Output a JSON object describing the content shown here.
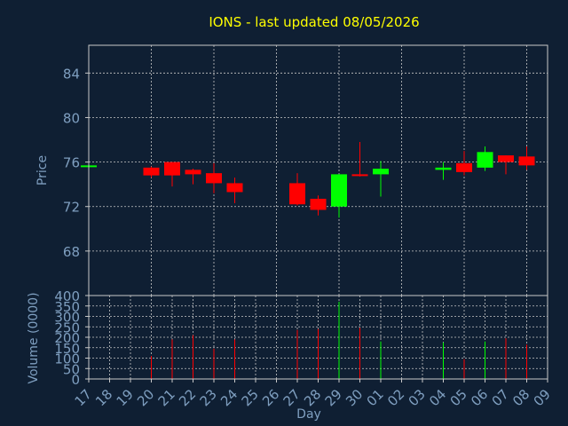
{
  "chart_data": {
    "type": "candlestick",
    "title": "IONS - last updated 08/05/2026",
    "xlabel": "Day",
    "price_panel": {
      "ylabel": "Price",
      "ylim": [
        64,
        86.5
      ],
      "yticks": [
        68,
        72,
        76,
        80,
        84
      ]
    },
    "volume_panel": {
      "ylabel": "Volume (0000)",
      "ylim": [
        0,
        400
      ],
      "yticks": [
        0,
        50,
        100,
        150,
        200,
        250,
        300,
        350,
        400
      ]
    },
    "x_ticks": [
      "17",
      "18",
      "19",
      "20",
      "21",
      "22",
      "23",
      "24",
      "25",
      "26",
      "27",
      "28",
      "29",
      "30",
      "01",
      "02",
      "03",
      "04",
      "05",
      "06",
      "07",
      "08",
      "09"
    ],
    "grid": true,
    "candles": [
      {
        "day": "17",
        "open": 75.7,
        "high": 75.7,
        "low": 75.6,
        "close": 75.7,
        "volume": 0
      },
      {
        "day": "20",
        "open": 75.5,
        "high": 75.6,
        "low": 74.6,
        "close": 74.8,
        "volume": 110
      },
      {
        "day": "21",
        "open": 76.0,
        "high": 76.0,
        "low": 73.8,
        "close": 74.8,
        "volume": 190
      },
      {
        "day": "22",
        "open": 75.3,
        "high": 75.4,
        "low": 74.0,
        "close": 74.9,
        "volume": 210
      },
      {
        "day": "23",
        "open": 75.0,
        "high": 75.9,
        "low": 73.2,
        "close": 74.1,
        "volume": 145
      },
      {
        "day": "24",
        "open": 74.1,
        "high": 74.6,
        "low": 72.3,
        "close": 73.3,
        "volume": 190
      },
      {
        "day": "27",
        "open": 74.1,
        "high": 75.0,
        "low": 72.1,
        "close": 72.2,
        "volume": 235
      },
      {
        "day": "28",
        "open": 72.7,
        "high": 73.0,
        "low": 71.2,
        "close": 71.7,
        "volume": 240
      },
      {
        "day": "29",
        "open": 72.0,
        "high": 74.9,
        "low": 71.0,
        "close": 74.9,
        "volume": 370
      },
      {
        "day": "30",
        "open": 74.9,
        "high": 77.8,
        "low": 74.7,
        "close": 74.8,
        "volume": 245
      },
      {
        "day": "01",
        "open": 74.9,
        "high": 76.1,
        "low": 72.9,
        "close": 75.4,
        "volume": 180
      },
      {
        "day": "04",
        "open": 75.3,
        "high": 76.0,
        "low": 74.4,
        "close": 75.5,
        "volume": 175
      },
      {
        "day": "05",
        "open": 75.9,
        "high": 77.0,
        "low": 74.8,
        "close": 75.1,
        "volume": 95
      },
      {
        "day": "06",
        "open": 75.5,
        "high": 77.4,
        "low": 75.2,
        "close": 76.9,
        "volume": 180
      },
      {
        "day": "07",
        "open": 76.6,
        "high": 76.6,
        "low": 74.9,
        "close": 76.0,
        "volume": 195
      },
      {
        "day": "08",
        "open": 76.5,
        "high": 77.4,
        "low": 75.3,
        "close": 75.7,
        "volume": 165
      }
    ],
    "colors": {
      "background": "#0f1f33",
      "plot_border": "#c8c8c8",
      "grid": "#c8c8c8",
      "axis_text": "#7f9fc0",
      "title": "#ffff00",
      "up": "#00ff00",
      "down": "#ff0000"
    }
  }
}
